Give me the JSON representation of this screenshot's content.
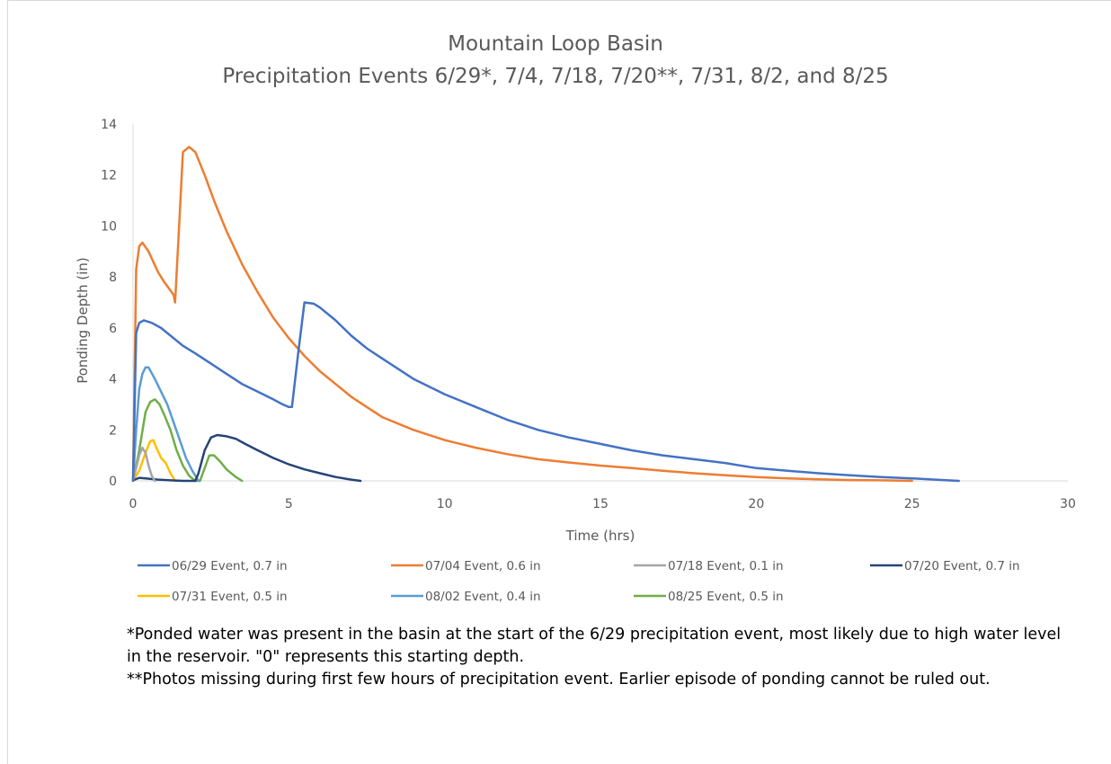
{
  "chart_data": {
    "type": "line",
    "title": "Mountain Loop Basin",
    "subtitle": "Precipitation Events 6/29*, 7/4, 7/18, 7/20**, 7/31, 8/2, and 8/25",
    "xlabel": "Time (hrs)",
    "ylabel": "Ponding Depth (in)",
    "xlim": [
      0,
      30
    ],
    "ylim": [
      0,
      14
    ],
    "x_ticks": [
      "0",
      "5",
      "10",
      "15",
      "20",
      "25",
      "30"
    ],
    "y_ticks": [
      "0",
      "2",
      "4",
      "6",
      "8",
      "10",
      "12",
      "14"
    ],
    "grid": false,
    "legend_position": "bottom",
    "series": [
      {
        "name": "06/29 Event, 0.7 in",
        "color": "#4472c4",
        "x": [
          0,
          0.1,
          0.2,
          0.35,
          0.6,
          0.9,
          1.2,
          1.6,
          2.0,
          2.5,
          3.0,
          3.5,
          4.0,
          4.5,
          4.8,
          5.0,
          5.1,
          5.3,
          5.5,
          5.8,
          6.0,
          6.5,
          7.0,
          7.5,
          8.0,
          9.0,
          10.0,
          11.0,
          12.0,
          13.0,
          14.0,
          15.0,
          16.0,
          17.0,
          18.0,
          19.0,
          20.0,
          21.0,
          22.0,
          23.0,
          24.0,
          25.0,
          26.0,
          26.5
        ],
        "y": [
          0,
          5.8,
          6.2,
          6.3,
          6.2,
          6.0,
          5.7,
          5.3,
          5.0,
          4.6,
          4.2,
          3.8,
          3.5,
          3.2,
          3.0,
          2.9,
          2.9,
          5.0,
          7.0,
          6.95,
          6.8,
          6.3,
          5.7,
          5.2,
          4.8,
          4.0,
          3.4,
          2.9,
          2.4,
          2.0,
          1.7,
          1.45,
          1.2,
          1.0,
          0.85,
          0.7,
          0.5,
          0.4,
          0.3,
          0.22,
          0.15,
          0.1,
          0.03,
          0
        ]
      },
      {
        "name": "07/04 Event, 0.6 in",
        "color": "#ed7d31",
        "x": [
          0,
          0.1,
          0.2,
          0.3,
          0.5,
          0.8,
          1.0,
          1.3,
          1.35,
          1.5,
          1.6,
          1.8,
          2.0,
          2.3,
          2.6,
          3.0,
          3.5,
          4.0,
          4.5,
          5.0,
          5.5,
          6.0,
          6.5,
          7.0,
          7.5,
          8.0,
          9.0,
          10.0,
          11.0,
          12.0,
          13.0,
          14.0,
          15.0,
          16.0,
          17.0,
          18.0,
          19.0,
          20.0,
          21.0,
          22.0,
          23.0,
          24.0,
          25.0
        ],
        "y": [
          0,
          8.3,
          9.2,
          9.35,
          9.0,
          8.2,
          7.8,
          7.3,
          7.0,
          10.5,
          12.9,
          13.1,
          12.9,
          12.0,
          11.0,
          9.8,
          8.5,
          7.4,
          6.4,
          5.6,
          4.9,
          4.3,
          3.8,
          3.3,
          2.9,
          2.5,
          2.0,
          1.6,
          1.3,
          1.05,
          0.85,
          0.72,
          0.6,
          0.5,
          0.4,
          0.3,
          0.22,
          0.15,
          0.1,
          0.06,
          0.03,
          0.02,
          0
        ]
      },
      {
        "name": "07/18 Event, 0.1 in",
        "color": "#a5a5a5",
        "x": [
          0,
          0.1,
          0.2,
          0.3,
          0.4,
          0.5,
          0.6,
          0.7
        ],
        "y": [
          0,
          0.5,
          1.0,
          1.3,
          1.1,
          0.6,
          0.2,
          0
        ]
      },
      {
        "name": "07/20 Event, 0.7 in",
        "color": "#264478",
        "x": [
          0,
          0.2,
          0.4,
          0.8,
          1.2,
          1.6,
          2.0,
          2.1,
          2.3,
          2.5,
          2.7,
          3.0,
          3.3,
          3.6,
          4.0,
          4.5,
          5.0,
          5.5,
          6.0,
          6.5,
          7.0,
          7.3
        ],
        "y": [
          0.02,
          0.12,
          0.1,
          0.05,
          0.02,
          0.0,
          0.0,
          0.3,
          1.2,
          1.7,
          1.8,
          1.75,
          1.65,
          1.45,
          1.2,
          0.9,
          0.65,
          0.45,
          0.3,
          0.15,
          0.05,
          0
        ]
      },
      {
        "name": "07/31 Event, 0.5 in",
        "color": "#ffc000",
        "x": [
          0,
          0.2,
          0.4,
          0.55,
          0.65,
          0.75,
          0.9,
          1.05,
          1.2,
          1.35
        ],
        "y": [
          0,
          0.4,
          1.1,
          1.55,
          1.6,
          1.3,
          0.9,
          0.7,
          0.3,
          0
        ]
      },
      {
        "name": "08/02 Event, 0.4 in",
        "color": "#5b9bd5",
        "x": [
          0,
          0.1,
          0.2,
          0.3,
          0.4,
          0.5,
          0.7,
          0.9,
          1.1,
          1.3,
          1.5,
          1.7,
          1.9,
          2.1
        ],
        "y": [
          0,
          2.0,
          3.6,
          4.2,
          4.45,
          4.45,
          4.0,
          3.5,
          3.0,
          2.3,
          1.6,
          0.9,
          0.4,
          0
        ]
      },
      {
        "name": "08/25 Event, 0.5 in",
        "color": "#70ad47",
        "x": [
          0,
          0.2,
          0.4,
          0.55,
          0.7,
          0.85,
          1.0,
          1.2,
          1.4,
          1.6,
          1.8,
          2.0,
          2.15,
          2.3,
          2.45,
          2.6,
          2.8,
          3.0,
          3.3,
          3.5
        ],
        "y": [
          0,
          1.2,
          2.7,
          3.1,
          3.2,
          3.0,
          2.6,
          2.0,
          1.2,
          0.6,
          0.2,
          0.0,
          0.0,
          0.5,
          1.0,
          1.0,
          0.75,
          0.45,
          0.15,
          0
        ]
      }
    ]
  },
  "notes": [
    "*Ponded water was present in the basin at the start of the 6/29 precipitation event, most likely due to high water level in the reservoir.  \"0\" represents this starting depth.",
    "**Photos missing during first few hours of precipitation event. Earlier episode of ponding cannot be ruled out."
  ]
}
